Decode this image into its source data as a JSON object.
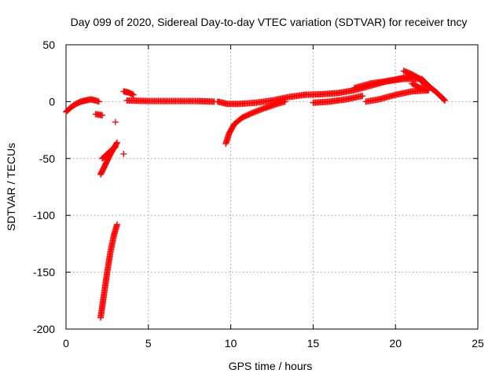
{
  "chart_data": {
    "type": "scatter",
    "title": "Day 099 of 2020, Sidereal Day-to-day VTEC variation (SDTVAR) for receiver tncy",
    "xlabel": "GPS time / hours",
    "ylabel": "SDTVAR / TECUs",
    "xlim": [
      0,
      25
    ],
    "ylim": [
      -200,
      50
    ],
    "xticks": [
      "0",
      "5",
      "10",
      "15",
      "20",
      "25"
    ],
    "yticks": [
      "-200",
      "-150",
      "-100",
      "-50",
      "0",
      "50"
    ],
    "grid": true,
    "marker": "+",
    "point_color": "#ff0000",
    "segments": [
      {
        "x": [
          0.0,
          0.3,
          0.6,
          0.9,
          1.2,
          1.5,
          1.8,
          2.0
        ],
        "y": [
          -9,
          -5,
          -2,
          0,
          1,
          2,
          1,
          0
        ]
      },
      {
        "x": [
          1.8,
          2.2
        ],
        "y": [
          -11,
          -12
        ]
      },
      {
        "x": [
          2.1,
          2.3,
          2.5,
          2.7,
          2.9,
          3.1
        ],
        "y": [
          -64,
          -58,
          -52,
          -46,
          -41,
          -36
        ]
      },
      {
        "x": [
          2.2,
          2.5,
          2.8,
          3.0
        ],
        "y": [
          -50,
          -46,
          -42,
          -40
        ]
      },
      {
        "x": [
          2.1,
          2.3,
          2.5,
          2.7,
          2.9,
          3.1
        ],
        "y": [
          -190,
          -170,
          -150,
          -132,
          -118,
          -108
        ]
      },
      {
        "x": [
          3.0
        ],
        "y": [
          -18
        ]
      },
      {
        "x": [
          3.5
        ],
        "y": [
          -46
        ]
      },
      {
        "x": [
          3.5,
          3.8,
          4.1
        ],
        "y": [
          9,
          8,
          6
        ]
      },
      {
        "x": [
          3.7,
          5,
          6.5,
          8,
          9.0
        ],
        "y": [
          1,
          0.5,
          0.5,
          0.5,
          0
        ]
      },
      {
        "x": [
          9.2,
          9.8,
          10.5,
          11.5,
          12.5,
          13.5,
          14.5
        ],
        "y": [
          0,
          -2,
          -2,
          -1,
          1,
          4,
          6
        ]
      },
      {
        "x": [
          9.7,
          9.9,
          10.2,
          10.7,
          11.3,
          12.0,
          12.8,
          13.3
        ],
        "y": [
          -37,
          -28,
          -20,
          -14,
          -10,
          -6,
          -2,
          0
        ]
      },
      {
        "x": [
          14.5,
          15.5,
          16.5,
          17.5,
          18.5,
          19.5,
          20.5,
          21.0
        ],
        "y": [
          6,
          6.5,
          7.5,
          10,
          14,
          18,
          21,
          22
        ]
      },
      {
        "x": [
          15.0,
          16.0,
          17.0,
          18.0
        ],
        "y": [
          -1,
          0,
          2,
          5
        ]
      },
      {
        "x": [
          17.5,
          18.5,
          19.5,
          20.5,
          21.5
        ],
        "y": [
          12,
          16,
          18,
          20,
          20
        ]
      },
      {
        "x": [
          18.2,
          19.0,
          20.0,
          21.0,
          22.0
        ],
        "y": [
          0,
          2,
          6,
          9,
          10
        ]
      },
      {
        "x": [
          20.5,
          21.0,
          21.5,
          21.8
        ],
        "y": [
          27,
          24,
          20,
          14
        ]
      },
      {
        "x": [
          21.6,
          22.0,
          22.5,
          23.0
        ],
        "y": [
          20,
          14,
          8,
          1
        ]
      },
      {
        "x": [
          21.0,
          21.5,
          22.0
        ],
        "y": [
          16,
          12,
          10
        ]
      }
    ]
  }
}
